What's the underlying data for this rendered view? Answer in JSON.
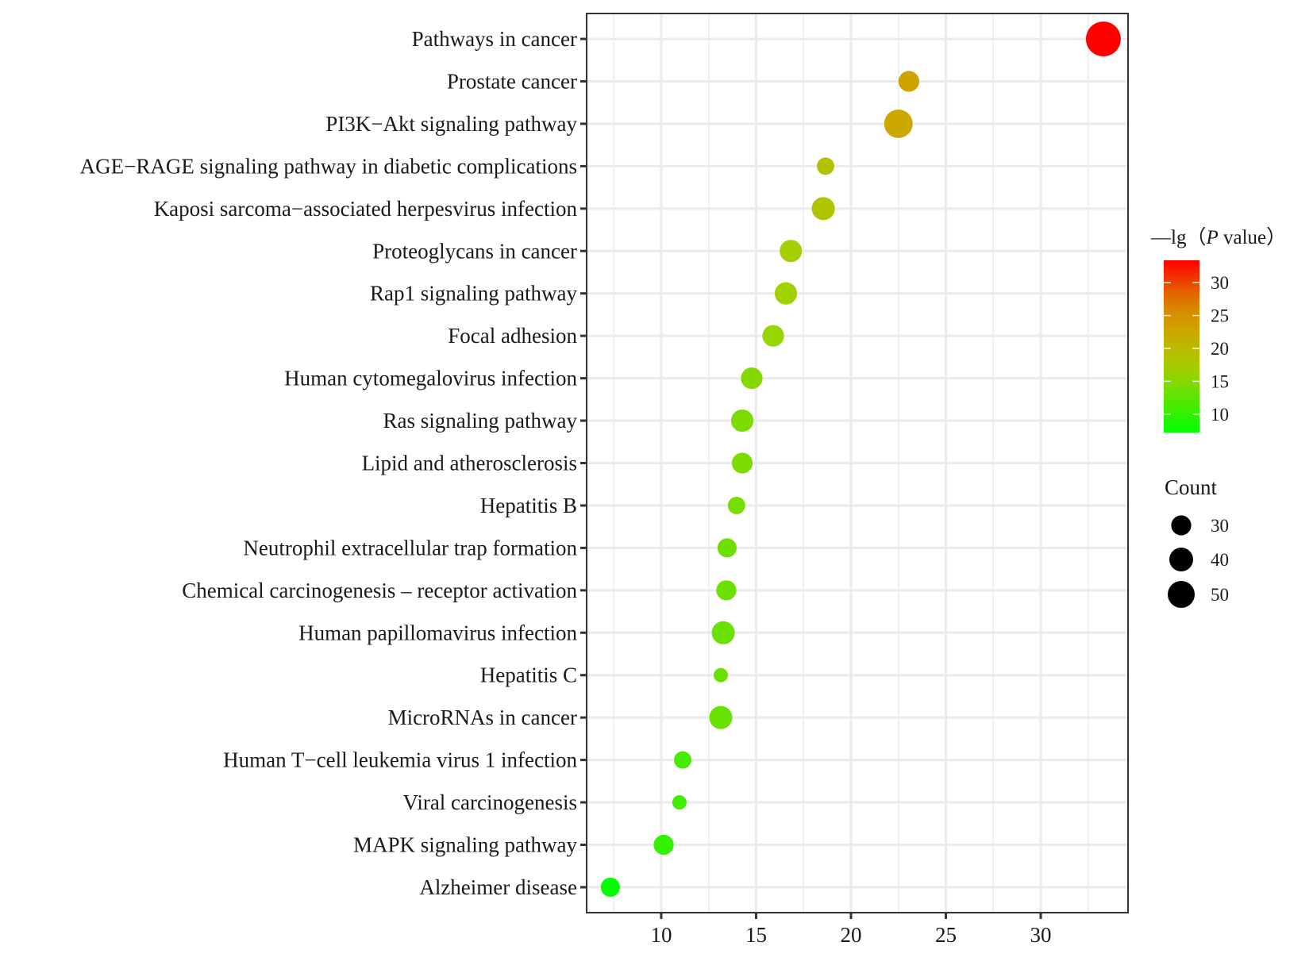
{
  "chart_data": {
    "type": "scatter",
    "subtype": "bubble",
    "title": "",
    "xlabel": "",
    "ylabel": "",
    "xlim": [
      6.07,
      34.6
    ],
    "x_ticks": [
      10,
      15,
      20,
      25,
      30
    ],
    "x_tick_labels": [
      "10",
      "15",
      "20",
      "25",
      "30"
    ],
    "grid": true,
    "categories": [
      "Pathways in cancer",
      "Prostate cancer",
      "PI3K−Akt signaling pathway",
      "AGE−RAGE signaling pathway in diabetic complications",
      "Kaposi sarcoma−associated herpesvirus infection",
      "Proteoglycans in cancer",
      "Rap1 signaling pathway",
      "Focal adhesion",
      "Human cytomegalovirus infection",
      "Ras signaling pathway",
      "Lipid and atherosclerosis",
      "Hepatitis B",
      "Neutrophil extracellular trap formation",
      "Chemical carcinogenesis – receptor activation",
      "Human papillomavirus infection",
      "Hepatitis C",
      "MicroRNAs in cancer",
      "Human T−cell leukemia virus 1 infection",
      "Viral carcinogenesis",
      "MAPK signaling pathway",
      "Alzheimer disease"
    ],
    "x": [
      33.3,
      23.05,
      22.5,
      18.66,
      18.54,
      16.83,
      16.57,
      15.9,
      14.77,
      14.27,
      14.27,
      13.97,
      13.47,
      13.43,
      13.27,
      13.14,
      13.14,
      11.13,
      10.96,
      10.13,
      7.32
    ],
    "count": [
      80,
      32,
      55,
      24,
      38,
      36,
      36,
      34,
      34,
      36,
      32,
      24,
      28,
      30,
      38,
      18,
      38,
      24,
      18,
      30,
      28
    ],
    "color_value": [
      33.3,
      23.05,
      22.5,
      18.66,
      18.54,
      16.83,
      16.57,
      15.9,
      14.77,
      14.27,
      14.27,
      13.97,
      13.47,
      13.43,
      13.27,
      13.14,
      13.14,
      11.13,
      10.96,
      10.13,
      7.32
    ],
    "color_legend": {
      "title": "—lg（P value）",
      "title_prefix": "—lg（",
      "title_italic": "P",
      "title_suffix": " value）",
      "range": [
        7.2,
        33.4
      ],
      "ticks": [
        30,
        25,
        20,
        15,
        10
      ],
      "tick_labels": [
        "30",
        "25",
        "20",
        "15",
        "10"
      ],
      "low_color": "#00FF00",
      "high_color": "#FF0000",
      "placement": "right"
    },
    "size_legend": {
      "title": "Count",
      "values": [
        30,
        40,
        50
      ],
      "labels": [
        "30",
        "40",
        "50"
      ],
      "color": "#000000",
      "placement": "right"
    }
  }
}
